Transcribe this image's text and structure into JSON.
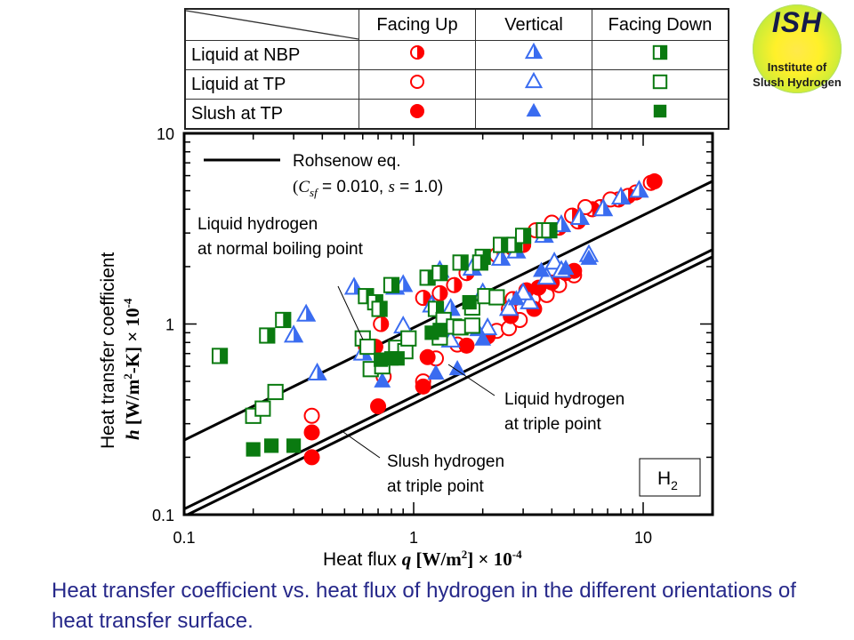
{
  "logo": {
    "abbr": "ISH",
    "line1": "Institute of",
    "line2": "Slush Hydrogen"
  },
  "legend_table": {
    "columns": [
      "Facing Up",
      "Vertical",
      "Facing Down"
    ],
    "rows": [
      {
        "label": "Liquid at NBP",
        "markers": [
          "half-circle",
          "half-triangle",
          "half-square"
        ]
      },
      {
        "label": "Liquid at TP",
        "markers": [
          "open-circle",
          "open-triangle",
          "open-square"
        ]
      },
      {
        "label": "Slush at TP",
        "markers": [
          "filled-circle",
          "filled-triangle",
          "filled-square"
        ]
      }
    ]
  },
  "colors": {
    "circle": "#ff0000",
    "triangle": "#3a6cf0",
    "square": "#0a7a10",
    "caption": "#26288a"
  },
  "caption": "Heat transfer coefficient vs. heat flux of hydrogen in the different orientations of heat transfer surface.",
  "chart_data": {
    "type": "scatter",
    "xscale": "log",
    "yscale": "log",
    "xlim": [
      0.1,
      20
    ],
    "ylim": [
      0.1,
      10
    ],
    "xticks": [
      "0.1",
      "1",
      "10"
    ],
    "xtick_values": [
      0.1,
      1,
      10
    ],
    "yticks": [
      "0.1",
      "1",
      "10"
    ],
    "ytick_values": [
      0.1,
      1,
      10
    ],
    "xlabel": {
      "pre": "Heat flux ",
      "var": "q",
      "unit": " [W/m",
      "sup": "2",
      "unit2": "] × 10",
      "exp": "-4"
    },
    "ylabel": {
      "line1": "Heat transfer coefficient",
      "var": "h",
      "unit": " [W/m",
      "sup": "2",
      "unit2": "-K] × 10",
      "exp": "-4"
    },
    "legend": {
      "line_label": "Rohsenow eq.",
      "params": {
        "open": "(",
        "csf": "C",
        "csf_sub": "sf",
        "csf_val": " = 0.010, ",
        "s": "s",
        "s_val": " = 1.0)"
      }
    },
    "annotations": {
      "nbp": [
        "Liquid hydrogen",
        "at normal boiling point"
      ],
      "tp": [
        "Liquid hydrogen",
        "at triple point"
      ],
      "slush": [
        "Slush hydrogen",
        "at triple point"
      ],
      "species": {
        "base": "H",
        "sub": "2"
      }
    },
    "lines": [
      {
        "name": "Rohsenow NBP",
        "x": [
          0.1,
          20
        ],
        "y": [
          0.246,
          5.6
        ]
      },
      {
        "name": "Rohsenow TP",
        "x": [
          0.1,
          20
        ],
        "y": [
          0.107,
          2.45
        ]
      },
      {
        "name": "Rohsenow Slush",
        "x": [
          0.1,
          20
        ],
        "y": [
          0.098,
          2.25
        ]
      }
    ],
    "series": [
      {
        "name": "Liquid at NBP, Facing Up",
        "marker": "half-circle",
        "points": [
          [
            0.68,
            0.76
          ],
          [
            0.62,
            0.76
          ],
          [
            0.72,
            1.0
          ],
          [
            1.1,
            1.37
          ],
          [
            1.3,
            1.45
          ],
          [
            1.5,
            1.6
          ],
          [
            1.7,
            1.85
          ],
          [
            2.3,
            2.3
          ],
          [
            2.7,
            2.5
          ],
          [
            3.0,
            2.6
          ],
          [
            3.4,
            3.1
          ],
          [
            2.7,
            1.35
          ],
          [
            3.1,
            1.5
          ],
          [
            4.3,
            3.2
          ],
          [
            5.2,
            3.45
          ],
          [
            6.5,
            4.1
          ],
          [
            7.8,
            4.5
          ],
          [
            9.3,
            4.9
          ],
          [
            10.8,
            5.5
          ],
          [
            4.9,
            3.7
          ],
          [
            6.0,
            4.0
          ],
          [
            8.6,
            4.7
          ]
        ]
      },
      {
        "name": "Liquid at TP, Facing Up",
        "marker": "open-circle",
        "points": [
          [
            0.36,
            0.33
          ],
          [
            0.74,
            0.53
          ],
          [
            1.1,
            0.5
          ],
          [
            1.25,
            0.66
          ],
          [
            1.55,
            0.78
          ],
          [
            2.3,
            0.92
          ],
          [
            2.6,
            0.95
          ],
          [
            2.9,
            1.05
          ],
          [
            2.6,
            1.2
          ],
          [
            3.3,
            1.35
          ],
          [
            3.8,
            1.42
          ],
          [
            4.3,
            1.6
          ],
          [
            5.0,
            1.8
          ],
          [
            5.6,
            4.1
          ],
          [
            4.0,
            3.4
          ],
          [
            7.2,
            4.5
          ]
        ]
      },
      {
        "name": "Slush at TP, Facing Up",
        "marker": "filled-circle",
        "points": [
          [
            0.36,
            0.2
          ],
          [
            0.36,
            0.27
          ],
          [
            0.7,
            0.37
          ],
          [
            1.1,
            0.47
          ],
          [
            1.15,
            0.67
          ],
          [
            1.7,
            0.77
          ],
          [
            2.65,
            1.1
          ],
          [
            3.1,
            1.5
          ],
          [
            3.5,
            1.55
          ],
          [
            4.0,
            1.65
          ],
          [
            4.6,
            1.85
          ],
          [
            5.0,
            1.9
          ],
          [
            3.35,
            1.2
          ],
          [
            2.1,
            0.86
          ],
          [
            11.2,
            5.6
          ]
        ]
      },
      {
        "name": "Liquid at NBP, Vertical",
        "marker": "half-triangle",
        "points": [
          [
            0.3,
            0.87
          ],
          [
            0.34,
            1.12
          ],
          [
            0.38,
            0.55
          ],
          [
            0.6,
            0.7
          ],
          [
            0.55,
            1.55
          ],
          [
            0.83,
            1.55
          ],
          [
            0.9,
            1.6
          ],
          [
            1.3,
            1.9
          ],
          [
            1.8,
            1.95
          ],
          [
            2.4,
            2.2
          ],
          [
            2.8,
            2.4
          ],
          [
            3.7,
            2.9
          ],
          [
            4.4,
            3.3
          ],
          [
            5.3,
            3.6
          ],
          [
            6.7,
            4.0
          ],
          [
            8.0,
            4.6
          ],
          [
            9.6,
            5.0
          ],
          [
            1.2,
            1.25
          ],
          [
            1.45,
            1.2
          ]
        ]
      },
      {
        "name": "Liquid at TP, Vertical",
        "marker": "open-triangle",
        "points": [
          [
            0.9,
            0.97
          ],
          [
            1.45,
            0.82
          ],
          [
            2.0,
            1.45
          ],
          [
            2.6,
            1.2
          ],
          [
            3.2,
            1.3
          ],
          [
            3.8,
            1.75
          ],
          [
            4.1,
            2.1
          ],
          [
            4.4,
            1.9
          ],
          [
            5.8,
            2.3
          ],
          [
            3.0,
            1.45
          ],
          [
            2.1,
            0.95
          ]
        ]
      },
      {
        "name": "Slush at TP, Vertical",
        "marker": "filled-triangle",
        "points": [
          [
            0.73,
            0.5
          ],
          [
            1.55,
            0.58
          ],
          [
            2.0,
            0.83
          ],
          [
            2.8,
            1.35
          ],
          [
            4.6,
            1.95
          ],
          [
            3.6,
            1.9
          ],
          [
            5.8,
            2.2
          ],
          [
            1.25,
            0.55
          ],
          [
            1.9,
            0.93
          ]
        ]
      },
      {
        "name": "Liquid at NBP, Facing Down",
        "marker": "half-square",
        "points": [
          [
            0.143,
            0.68
          ],
          [
            0.23,
            0.87
          ],
          [
            0.27,
            1.05
          ],
          [
            0.62,
            1.4
          ],
          [
            0.68,
            1.3
          ],
          [
            0.8,
            1.6
          ],
          [
            1.15,
            1.75
          ],
          [
            1.3,
            1.85
          ],
          [
            1.6,
            2.1
          ],
          [
            2.0,
            2.25
          ],
          [
            2.4,
            2.6
          ],
          [
            2.75,
            2.6
          ],
          [
            3.0,
            2.9
          ],
          [
            3.7,
            3.1
          ],
          [
            1.25,
            1.2
          ],
          [
            0.71,
            1.2
          ],
          [
            1.95,
            2.1
          ],
          [
            3.9,
            3.1
          ]
        ]
      },
      {
        "name": "Liquid at TP, Facing Down",
        "marker": "open-square",
        "points": [
          [
            0.2,
            0.33
          ],
          [
            0.22,
            0.36
          ],
          [
            0.25,
            0.44
          ],
          [
            0.6,
            0.84
          ],
          [
            0.63,
            0.76
          ],
          [
            0.65,
            0.58
          ],
          [
            0.73,
            0.6
          ],
          [
            0.84,
            0.75
          ],
          [
            0.92,
            0.72
          ],
          [
            0.95,
            0.84
          ],
          [
            1.35,
            1.05
          ],
          [
            1.5,
            0.97
          ],
          [
            1.6,
            0.96
          ],
          [
            1.8,
            1.22
          ],
          [
            2.05,
            1.4
          ],
          [
            2.3,
            1.38
          ],
          [
            1.8,
            0.98
          ],
          [
            1.3,
            0.85
          ]
        ]
      },
      {
        "name": "Slush at TP, Facing Down",
        "marker": "filled-square",
        "points": [
          [
            0.2,
            0.22
          ],
          [
            0.24,
            0.23
          ],
          [
            0.3,
            0.23
          ],
          [
            0.72,
            0.65
          ],
          [
            0.8,
            0.66
          ],
          [
            1.2,
            0.9
          ],
          [
            1.3,
            0.93
          ],
          [
            1.75,
            1.3
          ],
          [
            0.85,
            0.66
          ]
        ]
      }
    ]
  }
}
